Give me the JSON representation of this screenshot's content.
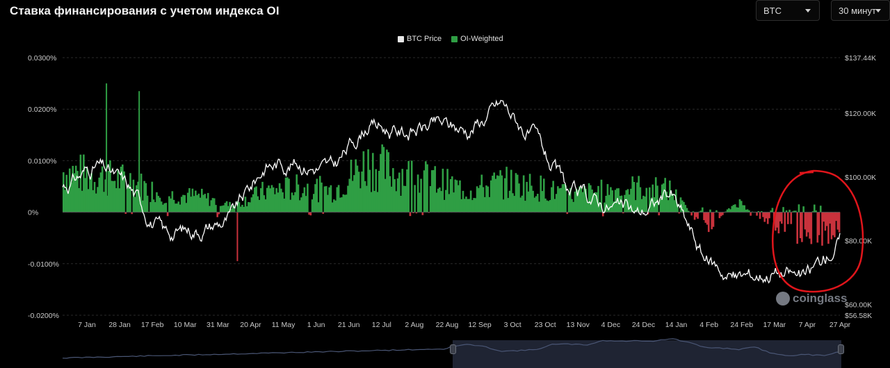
{
  "header": {
    "title": "Ставка финансирования с учетом индекса OI",
    "asset_select": "BTC",
    "interval_select": "30 минут"
  },
  "legend": [
    {
      "label": "BTC Price",
      "color": "#ffffff"
    },
    {
      "label": "OI-Weighted",
      "color": "#2f9e44"
    }
  ],
  "watermark": "coinglass",
  "colors": {
    "positive": "#2f9e44",
    "negative": "#c8323c",
    "price": "#ffffff",
    "annotation": "#e0151b"
  },
  "chart_data": {
    "type": "bar",
    "title": "Ставка финансирования с учетом индекса OI",
    "x_tick_labels": [
      "7 Jan",
      "28 Jan",
      "17 Feb",
      "10 Mar",
      "31 Mar",
      "20 Apr",
      "11 May",
      "1 Jun",
      "21 Jun",
      "12 Jul",
      "2 Aug",
      "22 Aug",
      "12 Sep",
      "3 Oct",
      "23 Oct",
      "13 Nov",
      "4 Dec",
      "24 Dec",
      "14 Jan",
      "4 Feb",
      "24 Feb",
      "17 Mar",
      "7 Apr",
      "27 Apr"
    ],
    "y_left": {
      "label": "",
      "range": [
        -0.02,
        0.03
      ],
      "tick_labels": [
        "0.0300%",
        "0.0200%",
        "0.0100%",
        "0%",
        "-0.0100%",
        "-0.0200%"
      ]
    },
    "y_right": {
      "label": "",
      "tick_labels": [
        "$137.44K",
        "$120.00K",
        "$100.00K",
        "$80.00K",
        "$60.00K",
        "$56.58K"
      ]
    },
    "series": [
      {
        "name": "OI-Weighted",
        "kind": "bar",
        "unit": "%",
        "x": [
          "7 Jan",
          "28 Jan",
          "17 Feb",
          "10 Mar",
          "31 Mar",
          "20 Apr",
          "11 May",
          "1 Jun",
          "21 Jun",
          "12 Jul",
          "2 Aug",
          "22 Aug",
          "12 Sep",
          "3 Oct",
          "23 Oct",
          "13 Nov",
          "4 Dec",
          "24 Dec",
          "14 Jan",
          "4 Feb",
          "24 Feb",
          "17 Mar",
          "7 Apr",
          "27 Apr"
        ],
        "values": [
          0.0095,
          0.0085,
          0.0072,
          0.004,
          0.0038,
          0.0015,
          0.005,
          0.0058,
          0.0052,
          0.0115,
          0.009,
          0.0075,
          0.005,
          0.007,
          0.006,
          0.004,
          0.005,
          0.0058,
          0.0052,
          -0.004,
          0.0025,
          -0.003,
          -0.006,
          -0.0045
        ],
        "spikes": [
          {
            "x": "28 Jan",
            "value": 0.025
          },
          {
            "x": "17 Feb",
            "value": 0.0235
          },
          {
            "x": "20 Apr",
            "value": -0.0095
          }
        ]
      },
      {
        "name": "BTC Price",
        "kind": "line",
        "unit": "USD",
        "x": [
          "7 Jan",
          "28 Jan",
          "17 Feb",
          "10 Mar",
          "31 Mar",
          "20 Apr",
          "11 May",
          "1 Jun",
          "21 Jun",
          "12 Jul",
          "2 Aug",
          "22 Aug",
          "12 Sep",
          "3 Oct",
          "23 Oct",
          "13 Nov",
          "4 Dec",
          "24 Dec",
          "14 Jan",
          "4 Feb",
          "24 Feb",
          "17 Mar",
          "7 Apr",
          "27 Apr"
        ],
        "values": [
          97000,
          104000,
          96000,
          82000,
          84000,
          87000,
          104000,
          105000,
          102000,
          117000,
          114000,
          116000,
          115000,
          123000,
          111000,
          94000,
          92000,
          88000,
          95000,
          74000,
          68000,
          71000,
          68000,
          80500
        ]
      }
    ]
  }
}
